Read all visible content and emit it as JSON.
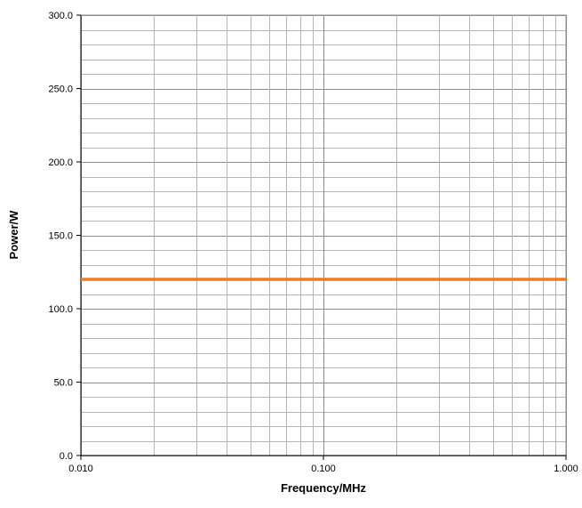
{
  "chart_data": {
    "type": "line",
    "title": "",
    "xlabel": "Frequency/MHz",
    "ylabel": "Power/W",
    "x_scale": "log",
    "xlim": [
      0.01,
      1.0
    ],
    "ylim": [
      0,
      300
    ],
    "x_ticks": [
      0.01,
      0.1,
      1.0
    ],
    "x_tick_labels": [
      "0.010",
      "0.100",
      "1.000"
    ],
    "y_ticks": [
      0,
      50,
      100,
      150,
      200,
      250,
      300
    ],
    "y_tick_labels": [
      "0.0",
      "50.0",
      "100.0",
      "150.0",
      "200.0",
      "250.0",
      "300.0"
    ],
    "y_minor_step": 10,
    "grid": true,
    "legend": "none",
    "series": [
      {
        "x": [
          0.01,
          1.0
        ],
        "y": [
          120,
          120
        ],
        "color": "#f07a1e"
      }
    ]
  }
}
